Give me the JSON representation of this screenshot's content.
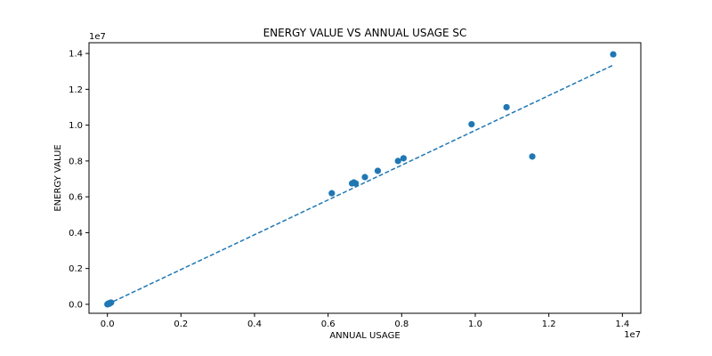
{
  "chart_data": {
    "type": "scatter",
    "title": "ENERGY VALUE VS ANNUAL USAGE SC",
    "xlabel": "ANNUAL USAGE",
    "ylabel": "ENERGY VALUE",
    "x_offset_label": "1e7",
    "y_offset_label": "1e7",
    "xlim": [
      -0.05,
      1.45
    ],
    "ylim": [
      -0.05,
      1.46
    ],
    "xticks": [
      0.0,
      0.2,
      0.4,
      0.6,
      0.8,
      1.0,
      1.2,
      1.4
    ],
    "yticks": [
      0.0,
      0.2,
      0.4,
      0.6,
      0.8,
      1.0,
      1.2,
      1.4
    ],
    "xtick_labels": [
      "0.0",
      "0.2",
      "0.4",
      "0.6",
      "0.8",
      "1.0",
      "1.2",
      "1.4"
    ],
    "ytick_labels": [
      "0.0",
      "0.2",
      "0.4",
      "0.6",
      "0.8",
      "1.0",
      "1.2",
      "1.4"
    ],
    "grid": false,
    "point_color": "#1f77b4",
    "trend_color": "#1f77b4",
    "series": [
      {
        "x": [
          0.0,
          0.002,
          0.004,
          0.006,
          0.008,
          0.01,
          0.005,
          0.003,
          0.61,
          0.665,
          0.67,
          0.675,
          0.7,
          0.735,
          0.79,
          0.805,
          0.99,
          1.085,
          1.155,
          1.375
        ],
        "y": [
          0.0,
          0.002,
          0.004,
          0.006,
          0.008,
          0.01,
          0.003,
          0.005,
          0.62,
          0.675,
          0.68,
          0.675,
          0.71,
          0.745,
          0.8,
          0.815,
          1.005,
          1.1,
          0.825,
          1.395
        ]
      }
    ],
    "trendline": {
      "style": "dashed",
      "x": [
        0.0,
        1.375
      ],
      "y": [
        0.0,
        1.335
      ]
    }
  }
}
